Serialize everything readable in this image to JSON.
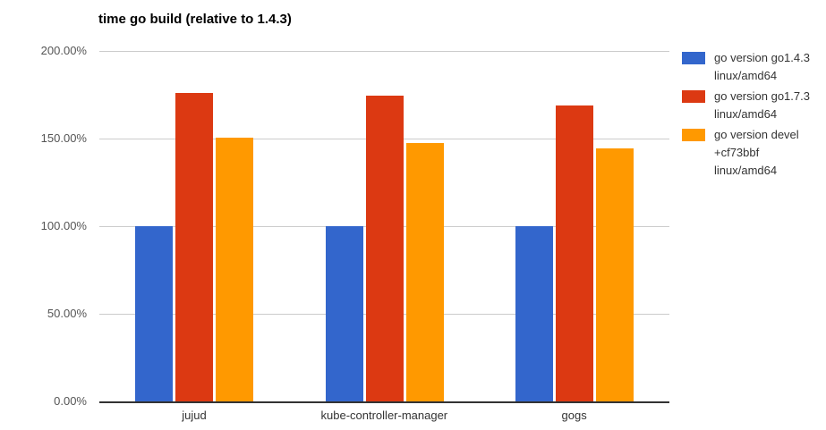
{
  "title": "time go build (relative to 1.4.3)",
  "chart_data": {
    "type": "bar",
    "title": "time go build (relative to 1.4.3)",
    "categories": [
      "jujud",
      "kube-controller-manager",
      "gogs"
    ],
    "series": [
      {
        "name": "go version go1.4.3 linux/amd64",
        "color": "#3366cc",
        "values": [
          100,
          100,
          100
        ]
      },
      {
        "name": "go version go1.7.3 linux/amd64",
        "color": "#dc3912",
        "values": [
          176.0,
          174.5,
          168.9
        ]
      },
      {
        "name": "go version devel +cf73bbf linux/amd64",
        "color": "#ff9900",
        "values": [
          150.4,
          147.3,
          144.2
        ]
      }
    ],
    "xlabel": "",
    "ylabel": "",
    "ylim": [
      0,
      200
    ],
    "yticks": [
      {
        "value": 0,
        "label": "0.00%"
      },
      {
        "value": 50,
        "label": "50.00%"
      },
      {
        "value": 100,
        "label": "100.00%"
      },
      {
        "value": 150,
        "label": "150.00%"
      },
      {
        "value": 200,
        "label": "200.00%"
      }
    ],
    "grid": true,
    "legend_position": "right",
    "colors": {
      "gridline": "#cccccc",
      "axis_line": "#333333",
      "ytick_text": "#555555",
      "xtick_text": "#333333",
      "title_text": "#000000",
      "background": "#ffffff"
    }
  }
}
